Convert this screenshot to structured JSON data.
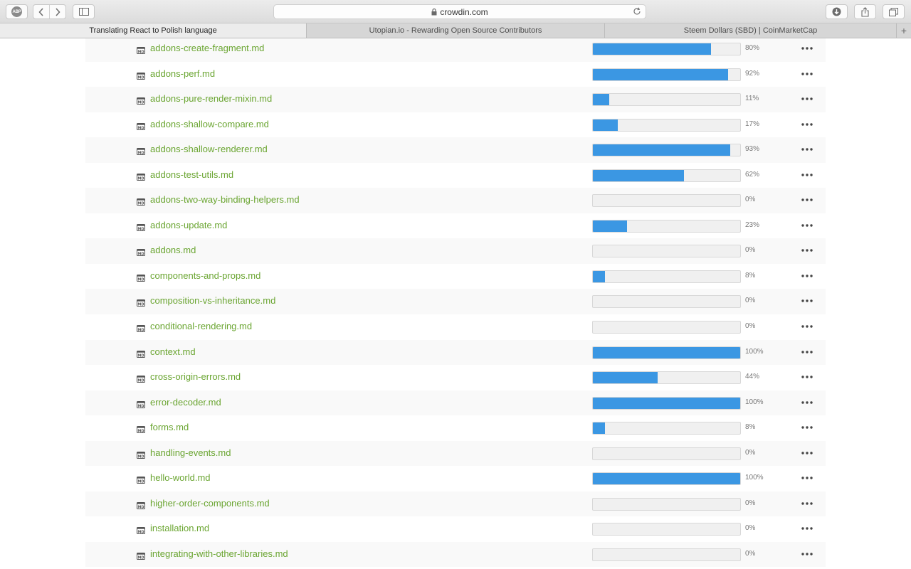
{
  "browser": {
    "address": "crowdin.com",
    "tabs": [
      {
        "label": "Translating React to Polish language",
        "active": true
      },
      {
        "label": "Utopian.io - Rewarding Open Source Contributors",
        "active": false
      },
      {
        "label": "Steem Dollars (SBD) | CoinMarketCap",
        "active": false
      }
    ],
    "new_tab": "+",
    "abp_badge": "ABP",
    "accent_colors": {
      "progress": "#3b97e3",
      "file_link": "#6aa531"
    }
  },
  "files": [
    {
      "name": "addons-create-fragment.md",
      "progress": 80,
      "label": "80%"
    },
    {
      "name": "addons-perf.md",
      "progress": 92,
      "label": "92%"
    },
    {
      "name": "addons-pure-render-mixin.md",
      "progress": 11,
      "label": "11%"
    },
    {
      "name": "addons-shallow-compare.md",
      "progress": 17,
      "label": "17%"
    },
    {
      "name": "addons-shallow-renderer.md",
      "progress": 93,
      "label": "93%"
    },
    {
      "name": "addons-test-utils.md",
      "progress": 62,
      "label": "62%"
    },
    {
      "name": "addons-two-way-binding-helpers.md",
      "progress": 0,
      "label": "0%"
    },
    {
      "name": "addons-update.md",
      "progress": 23,
      "label": "23%"
    },
    {
      "name": "addons.md",
      "progress": 0,
      "label": "0%"
    },
    {
      "name": "components-and-props.md",
      "progress": 8,
      "label": "8%"
    },
    {
      "name": "composition-vs-inheritance.md",
      "progress": 0,
      "label": "0%"
    },
    {
      "name": "conditional-rendering.md",
      "progress": 0,
      "label": "0%"
    },
    {
      "name": "context.md",
      "progress": 100,
      "label": "100%"
    },
    {
      "name": "cross-origin-errors.md",
      "progress": 44,
      "label": "44%"
    },
    {
      "name": "error-decoder.md",
      "progress": 100,
      "label": "100%"
    },
    {
      "name": "forms.md",
      "progress": 8,
      "label": "8%"
    },
    {
      "name": "handling-events.md",
      "progress": 0,
      "label": "0%"
    },
    {
      "name": "hello-world.md",
      "progress": 100,
      "label": "100%"
    },
    {
      "name": "higher-order-components.md",
      "progress": 0,
      "label": "0%"
    },
    {
      "name": "installation.md",
      "progress": 0,
      "label": "0%"
    },
    {
      "name": "integrating-with-other-libraries.md",
      "progress": 0,
      "label": "0%"
    }
  ],
  "icons": {
    "file": "markdown-file-icon",
    "more": "more-options-icon"
  }
}
